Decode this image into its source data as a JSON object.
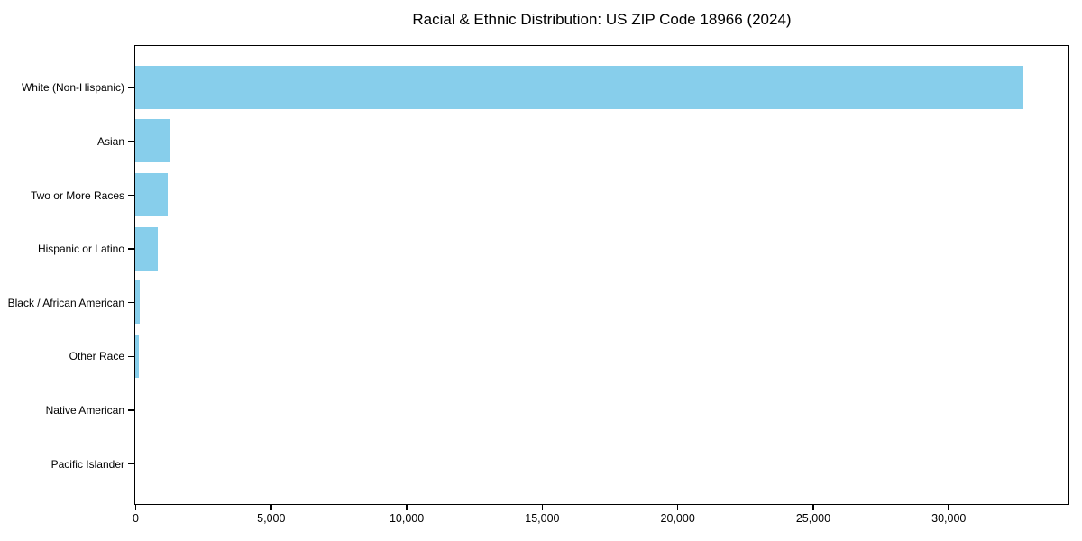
{
  "chart_data": {
    "type": "bar",
    "orientation": "horizontal",
    "title": "Racial & Ethnic Distribution: US ZIP Code 18966 (2024)",
    "categories": [
      "White (Non-Hispanic)",
      "Asian",
      "Two or More Races",
      "Hispanic or Latino",
      "Black / African American",
      "Other Race",
      "Native American",
      "Pacific Islander"
    ],
    "values": [
      32750,
      1270,
      1180,
      820,
      160,
      120,
      0,
      0
    ],
    "xlabel": "",
    "ylabel": "",
    "xlim": [
      0,
      34400
    ],
    "x_ticks": [
      0,
      5000,
      10000,
      15000,
      20000,
      25000,
      30000
    ],
    "x_tick_labels": [
      "0",
      "5,000",
      "10,000",
      "15,000",
      "20,000",
      "25,000",
      "30,000"
    ],
    "bar_color": "#87CEEB",
    "text_color": "#000000",
    "background_color": "#ffffff",
    "grid": false,
    "legend": false
  }
}
